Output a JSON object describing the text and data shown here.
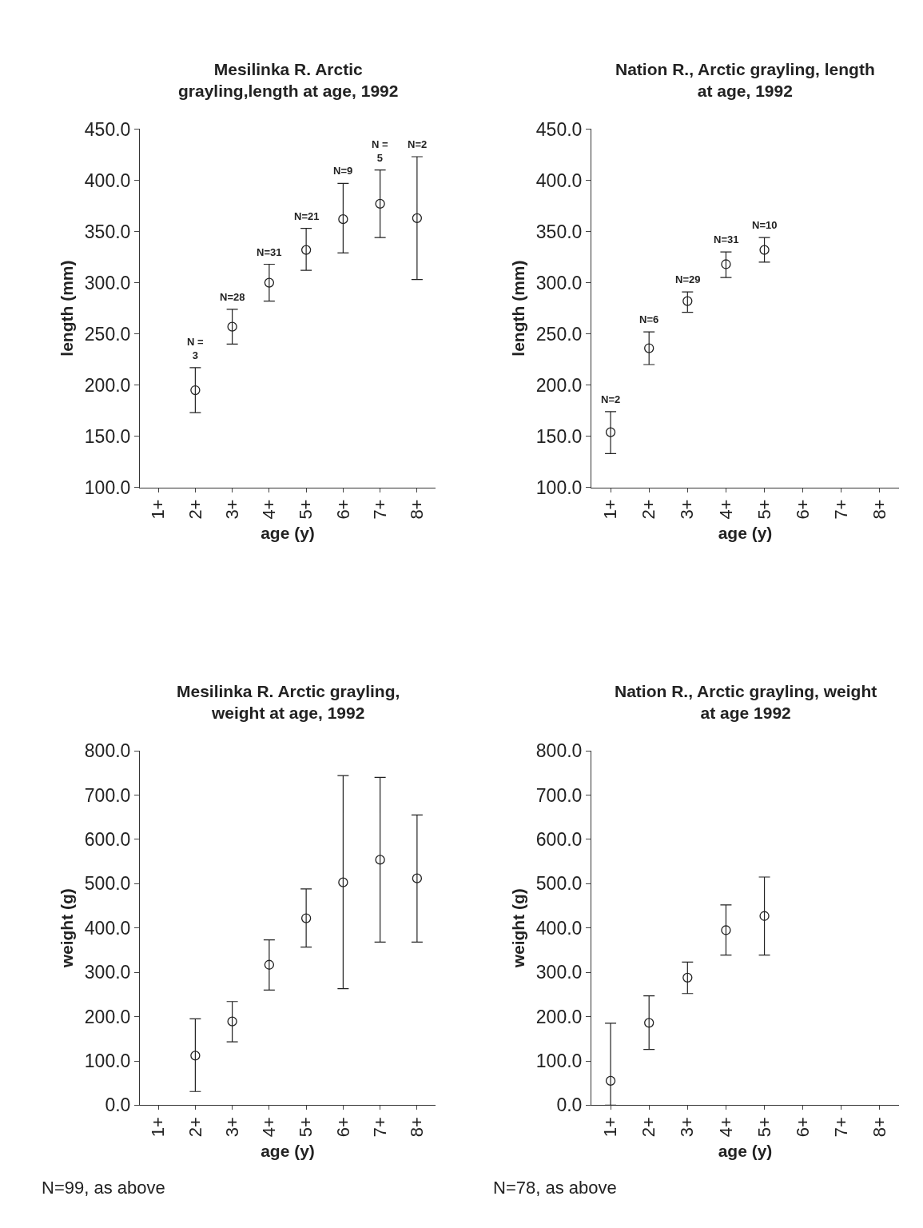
{
  "chart_data": [
    {
      "type": "scatter",
      "title": "Mesilinka R. Arctic\ngrayling,length at age, 1992",
      "xlabel": "age (y)",
      "ylabel": "length (mm)",
      "categories": [
        "1+",
        "2+",
        "3+",
        "4+",
        "5+",
        "6+",
        "7+",
        "8+"
      ],
      "marker": "circle",
      "ylim": [
        100,
        450
      ],
      "yticks": [
        {
          "value": 100,
          "label": "100.0"
        },
        {
          "value": 150,
          "label": "150.0"
        },
        {
          "value": 200,
          "label": "200.0"
        },
        {
          "value": 250,
          "label": "250.0"
        },
        {
          "value": 300,
          "label": "300.0"
        },
        {
          "value": 350,
          "label": "350.0"
        },
        {
          "value": 400,
          "label": "400.0"
        },
        {
          "value": 450,
          "label": "450.0"
        }
      ],
      "series": [
        {
          "color": "#222222",
          "values": [
            null,
            195,
            257,
            300,
            332,
            362,
            377,
            363
          ],
          "errors": [
            null,
            [
              173,
              217
            ],
            [
              240,
              274
            ],
            [
              282,
              318
            ],
            [
              312,
              353
            ],
            [
              329,
              397
            ],
            [
              344,
              410
            ],
            [
              303,
              423
            ]
          ]
        }
      ],
      "annotations": [
        {
          "text": "N =\n3",
          "x": "2+",
          "y": 217
        },
        {
          "text": "N=28",
          "x": "3+",
          "y": 274
        },
        {
          "text": "N=31",
          "x": "4+",
          "y": 318
        },
        {
          "text": "N=21",
          "x": "5+",
          "y": 353
        },
        {
          "text": "N=9",
          "x": "6+",
          "y": 397
        },
        {
          "text": "N =\n5",
          "x": "7+",
          "y": 410
        },
        {
          "text": "N=2",
          "x": "8+",
          "y": 423
        }
      ]
    },
    {
      "type": "scatter",
      "title": "Nation R., Arctic grayling, length\nat age, 1992",
      "xlabel": "age (y)",
      "ylabel": "length (mm)",
      "categories": [
        "1+",
        "2+",
        "3+",
        "4+",
        "5+",
        "6+",
        "7+",
        "8+"
      ],
      "marker": "circle",
      "ylim": [
        100,
        450
      ],
      "yticks": [
        {
          "value": 100,
          "label": "100.0"
        },
        {
          "value": 150,
          "label": "150.0"
        },
        {
          "value": 200,
          "label": "200.0"
        },
        {
          "value": 250,
          "label": "250.0"
        },
        {
          "value": 300,
          "label": "300.0"
        },
        {
          "value": 350,
          "label": "350.0"
        },
        {
          "value": 400,
          "label": "400.0"
        },
        {
          "value": 450,
          "label": "450.0"
        }
      ],
      "series": [
        {
          "color": "#222222",
          "values": [
            154,
            236,
            282,
            318,
            332,
            null,
            null,
            null
          ],
          "errors": [
            [
              133,
              174
            ],
            [
              220,
              252
            ],
            [
              271,
              291
            ],
            [
              305,
              330
            ],
            [
              320,
              344
            ],
            null,
            null,
            null
          ]
        }
      ],
      "annotations": [
        {
          "text": "N=2",
          "x": "1+",
          "y": 174
        },
        {
          "text": "N=6",
          "x": "2+",
          "y": 252
        },
        {
          "text": "N=29",
          "x": "3+",
          "y": 291
        },
        {
          "text": "N=31",
          "x": "4+",
          "y": 330
        },
        {
          "text": "N=10",
          "x": "5+",
          "y": 344
        }
      ]
    },
    {
      "type": "scatter",
      "title": "Mesilinka R. Arctic grayling,\nweight at age, 1992",
      "xlabel": "age (y)",
      "ylabel": "weight (g)",
      "categories": [
        "1+",
        "2+",
        "3+",
        "4+",
        "5+",
        "6+",
        "7+",
        "8+"
      ],
      "marker": "circle",
      "ylim": [
        0,
        800
      ],
      "yticks": [
        {
          "value": 0,
          "label": "0.0"
        },
        {
          "value": 100,
          "label": "100.0"
        },
        {
          "value": 200,
          "label": "200.0"
        },
        {
          "value": 300,
          "label": "300.0"
        },
        {
          "value": 400,
          "label": "400.0"
        },
        {
          "value": 500,
          "label": "500.0"
        },
        {
          "value": 600,
          "label": "600.0"
        },
        {
          "value": 700,
          "label": "700.0"
        },
        {
          "value": 800,
          "label": "800.0"
        }
      ],
      "series": [
        {
          "color": "#222222",
          "values": [
            null,
            112,
            189,
            317,
            422,
            503,
            554,
            512
          ],
          "errors": [
            null,
            [
              31,
              195
            ],
            [
              143,
              234
            ],
            [
              260,
              373
            ],
            [
              357,
              488
            ],
            [
              263,
              744
            ],
            [
              368,
              740
            ],
            [
              368,
              655
            ]
          ]
        }
      ],
      "annotations": [
        "N=99, as above"
      ]
    },
    {
      "type": "scatter",
      "title": "Nation R., Arctic grayling, weight\nat age 1992",
      "xlabel": "age (y)",
      "ylabel": "weight (g)",
      "categories": [
        "1+",
        "2+",
        "3+",
        "4+",
        "5+",
        "6+",
        "7+",
        "8+"
      ],
      "marker": "circle",
      "ylim": [
        0,
        800
      ],
      "yticks": [
        {
          "value": 0,
          "label": "0.0"
        },
        {
          "value": 100,
          "label": "100.0"
        },
        {
          "value": 200,
          "label": "200.0"
        },
        {
          "value": 300,
          "label": "300.0"
        },
        {
          "value": 400,
          "label": "400.0"
        },
        {
          "value": 500,
          "label": "500.0"
        },
        {
          "value": 600,
          "label": "600.0"
        },
        {
          "value": 700,
          "label": "700.0"
        },
        {
          "value": 800,
          "label": "800.0"
        }
      ],
      "series": [
        {
          "color": "#222222",
          "values": [
            55,
            186,
            288,
            395,
            427,
            null,
            null,
            null
          ],
          "errors": [
            [
              0,
              185
            ],
            [
              126,
              247
            ],
            [
              252,
              323
            ],
            [
              339,
              452
            ],
            [
              339,
              515
            ],
            null,
            null,
            null
          ]
        }
      ],
      "annotations": [
        "N=78, as above"
      ]
    }
  ]
}
